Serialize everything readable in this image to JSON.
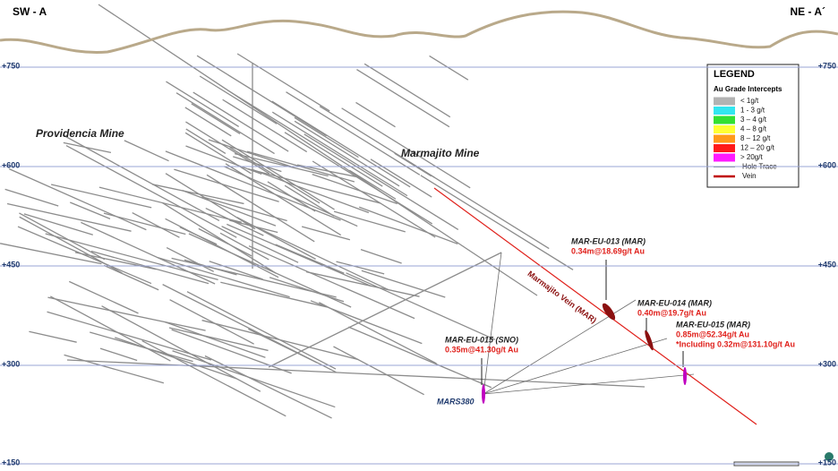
{
  "header": {
    "left": "SW - A",
    "right": "NE - A´"
  },
  "levels": [
    "+750",
    "+600",
    "+450",
    "+300",
    "+150"
  ],
  "mines": [
    "Providencia Mine",
    "Marmajito Mine"
  ],
  "vein_label": "Marmajito Vein (MAR)",
  "portal": "MARS380",
  "intercepts": [
    {
      "hole": "MAR-EU-013 (MAR)",
      "lines": [
        "0.34m@18.69g/t Au"
      ]
    },
    {
      "hole": "MAR-EU-014 (MAR)",
      "lines": [
        "0.40m@19.7g/t Au"
      ]
    },
    {
      "hole": "MAR-EU-015 (MAR)",
      "lines": [
        "0.85m@52.34g/t Au",
        "*Including 0.32m@131.10g/t Au"
      ]
    },
    {
      "hole": "MAR-EU-015 (SNO)",
      "lines": [
        "0.35m@41.30g/t Au"
      ]
    }
  ],
  "legend": {
    "title": "LEGEND",
    "subtitle": "Au Grade Intercepts",
    "items": [
      "< 1g/t",
      "1 - 3 g/t",
      "3 – 4 g/t",
      "4 – 8 g/t",
      "8 – 12 g/t",
      "12 – 20 g/t",
      "> 20g/t",
      "Hole Trace",
      "Vein"
    ]
  }
}
